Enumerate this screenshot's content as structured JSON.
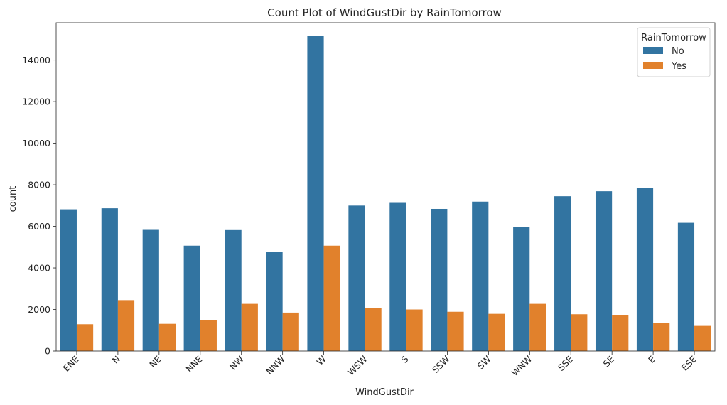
{
  "chart_data": {
    "type": "bar",
    "title": "Count Plot of WindGustDir by RainTomorrow",
    "xlabel": "WindGustDir",
    "ylabel": "count",
    "ylim": [
      0,
      15800
    ],
    "yticks": [
      0,
      2000,
      4000,
      6000,
      8000,
      10000,
      12000,
      14000
    ],
    "categories": [
      "ENE",
      "N",
      "NE",
      "NNE",
      "NW",
      "NNW",
      "W",
      "WSW",
      "S",
      "SSW",
      "SW",
      "WNW",
      "SSE",
      "SE",
      "E",
      "ESE"
    ],
    "legend_title": "RainTomorrow",
    "legend_position": "top-right",
    "grid": false,
    "series": [
      {
        "name": "No",
        "color": "#3274a1",
        "values": [
          6820,
          6870,
          5830,
          5070,
          5820,
          4760,
          15180,
          7000,
          7130,
          6840,
          7190,
          5960,
          7450,
          7690,
          7840,
          6170
        ]
      },
      {
        "name": "Yes",
        "color": "#e1812c",
        "values": [
          1290,
          2450,
          1310,
          1490,
          2270,
          1850,
          5070,
          2070,
          2000,
          1890,
          1790,
          2270,
          1770,
          1730,
          1340,
          1210
        ]
      }
    ]
  }
}
